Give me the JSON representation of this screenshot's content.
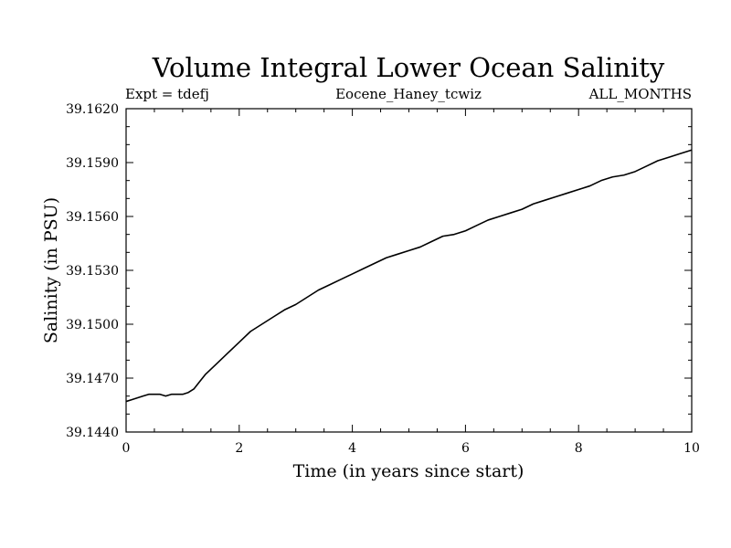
{
  "chart_data": {
    "type": "line",
    "title": "Volume Integral Lower Ocean Salinity",
    "subtitle_left": "Expt = tdefj",
    "subtitle_center": "Eocene_Haney_tcwiz",
    "subtitle_right": "ALL_MONTHS",
    "xlabel": "Time (in years since start)",
    "ylabel": "Salinity (in PSU)",
    "xlim": [
      0,
      10
    ],
    "ylim": [
      39.144,
      39.162
    ],
    "x_ticks": [
      0,
      2,
      4,
      6,
      8,
      10
    ],
    "x_tick_labels": [
      "0",
      "2",
      "4",
      "6",
      "8",
      "10"
    ],
    "y_ticks": [
      39.144,
      39.147,
      39.15,
      39.153,
      39.156,
      39.159,
      39.162
    ],
    "y_tick_labels": [
      "39.1440",
      "39.1470",
      "39.1500",
      "39.1530",
      "39.1560",
      "39.1590",
      "39.1620"
    ],
    "grid": false,
    "series": [
      {
        "color": "#000000",
        "x": [
          0,
          0.1,
          0.2,
          0.3,
          0.4,
          0.5,
          0.6,
          0.7,
          0.8,
          0.9,
          1.0,
          1.1,
          1.2,
          1.3,
          1.4,
          1.6,
          1.8,
          2.0,
          2.2,
          2.4,
          2.6,
          2.8,
          3.0,
          3.2,
          3.4,
          3.6,
          3.8,
          4.0,
          4.2,
          4.4,
          4.6,
          4.8,
          5.0,
          5.2,
          5.4,
          5.6,
          5.8,
          6.0,
          6.2,
          6.4,
          6.6,
          6.8,
          7.0,
          7.2,
          7.4,
          7.6,
          7.8,
          8.0,
          8.2,
          8.4,
          8.6,
          8.8,
          9.0,
          9.2,
          9.4,
          9.6,
          9.8,
          10.0
        ],
        "y": [
          39.1457,
          39.1458,
          39.1459,
          39.146,
          39.1461,
          39.1461,
          39.1461,
          39.146,
          39.1461,
          39.1461,
          39.1461,
          39.1462,
          39.1464,
          39.1468,
          39.1472,
          39.1478,
          39.1484,
          39.149,
          39.1496,
          39.15,
          39.1504,
          39.1508,
          39.1511,
          39.1515,
          39.1519,
          39.1522,
          39.1525,
          39.1528,
          39.1531,
          39.1534,
          39.1537,
          39.1539,
          39.1541,
          39.1543,
          39.1546,
          39.1549,
          39.155,
          39.1552,
          39.1555,
          39.1558,
          39.156,
          39.1562,
          39.1564,
          39.1567,
          39.1569,
          39.1571,
          39.1573,
          39.1575,
          39.1577,
          39.158,
          39.1582,
          39.1583,
          39.1585,
          39.1588,
          39.1591,
          39.1593,
          39.1595,
          39.1597
        ]
      }
    ]
  }
}
